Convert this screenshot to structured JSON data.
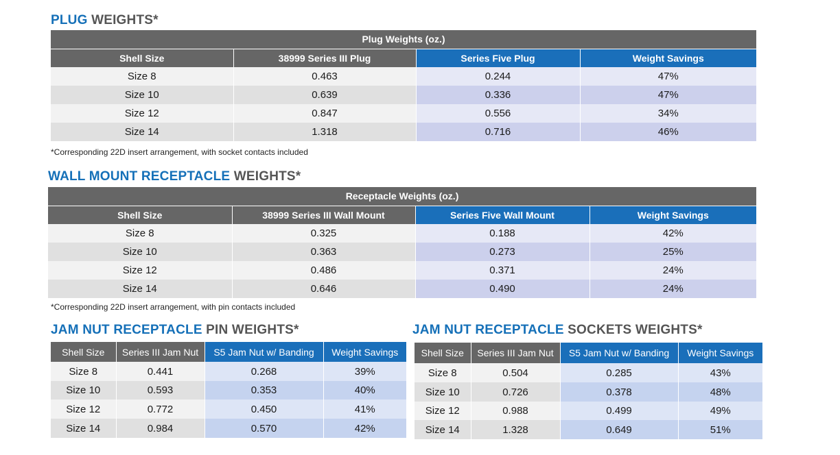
{
  "plug": {
    "heading_hl": "PLUG",
    "heading_rest": " WEIGHTS*",
    "group_title": "Plug Weights (oz.)",
    "columns": [
      "Shell Size",
      "38999 Series III Plug",
      "Series Five Plug",
      "Weight Savings"
    ],
    "rows": [
      [
        "Size 8",
        "0.463",
        "0.244",
        "47%"
      ],
      [
        "Size 10",
        "0.639",
        "0.336",
        "47%"
      ],
      [
        "Size 12",
        "0.847",
        "0.556",
        "34%"
      ],
      [
        "Size 14",
        "1.318",
        "0.716",
        "46%"
      ]
    ],
    "footnote": "*Corresponding 22D insert arrangement, with socket contacts included"
  },
  "wall": {
    "heading_hl": "WALL MOUNT RECEPTACLE",
    "heading_rest": " WEIGHTS*",
    "group_title": "Receptacle Weights (oz.)",
    "columns": [
      "Shell Size",
      "38999 Series III Wall Mount",
      "Series Five Wall Mount",
      "Weight Savings"
    ],
    "rows": [
      [
        "Size 8",
        "0.325",
        "0.188",
        "42%"
      ],
      [
        "Size 10",
        "0.363",
        "0.273",
        "25%"
      ],
      [
        "Size 12",
        "0.486",
        "0.371",
        "24%"
      ],
      [
        "Size 14",
        "0.646",
        "0.490",
        "24%"
      ]
    ],
    "footnote": "*Corresponding 22D insert arrangement, with pin contacts included"
  },
  "jam_pin": {
    "heading_hl": "JAM NUT RECEPTACLE",
    "heading_rest": " PIN WEIGHTS*",
    "columns": [
      "Shell Size",
      "Series III Jam Nut",
      "S5 Jam Nut w/ Banding",
      "Weight Savings"
    ],
    "rows": [
      [
        "Size 8",
        "0.441",
        "0.268",
        "39%"
      ],
      [
        "Size 10",
        "0.593",
        "0.353",
        "40%"
      ],
      [
        "Size 12",
        "0.772",
        "0.450",
        "41%"
      ],
      [
        "Size 14",
        "0.984",
        "0.570",
        "42%"
      ]
    ]
  },
  "jam_socket": {
    "heading_hl": "JAM NUT RECEPTACLE",
    "heading_rest": " SOCKETS WEIGHTS*",
    "columns": [
      "Shell Size",
      "Series III Jam Nut",
      "S5 Jam Nut w/ Banding",
      "Weight Savings"
    ],
    "rows": [
      [
        "Size 8",
        "0.504",
        "0.285",
        "43%"
      ],
      [
        "Size 10",
        "0.726",
        "0.378",
        "48%"
      ],
      [
        "Size 12",
        "0.988",
        "0.499",
        "49%"
      ],
      [
        "Size 14",
        "1.328",
        "0.649",
        "51%"
      ]
    ]
  },
  "colors": {
    "heading_blue": "#1570b8",
    "heading_gray": "#555555",
    "header_gray": "#666666",
    "header_blue": "#1a6fba"
  }
}
